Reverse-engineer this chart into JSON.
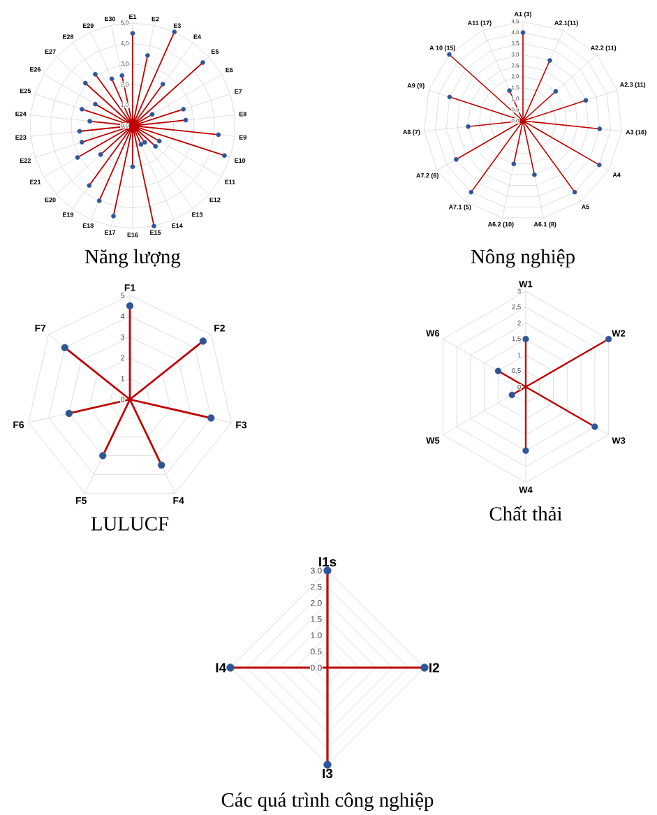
{
  "chart_data": [
    {
      "type": "radar",
      "title": "Năng lượng",
      "categories": [
        "E1",
        "E2",
        "E3",
        "E4",
        "E5",
        "E6",
        "E7",
        "E8",
        "E9",
        "E10",
        "E11",
        "E12",
        "E13",
        "E14",
        "E15",
        "E16",
        "E17",
        "E18",
        "E19",
        "E20",
        "E21",
        "E22",
        "E23",
        "E24",
        "E25",
        "E26",
        "E27",
        "E28",
        "E29",
        "E30"
      ],
      "series": [
        {
          "color": "#c00000",
          "values": [
            4.5,
            3.5,
            5.0,
            2.5,
            4.6,
            1.1,
            2.6,
            2.6,
            4.2,
            4.7,
            1.5,
            1.5,
            1.0,
            1.0,
            5.0,
            2.0,
            4.5,
            4.0,
            3.6,
            2.1,
            3.1,
            2.6,
            2.6,
            2.1,
            2.6,
            2.1,
            3.1,
            3.1,
            2.5,
            2.5
          ]
        }
      ],
      "ylim": [
        0,
        5
      ],
      "yticks": [
        {
          "value": 0,
          "label": "0,0"
        },
        {
          "value": 1,
          "label": "1,0"
        },
        {
          "value": 2,
          "label": "2,0"
        },
        {
          "value": 3,
          "label": "3,0"
        },
        {
          "value": 4,
          "label": "4,0"
        },
        {
          "value": 5,
          "label": "5,0"
        }
      ],
      "grid": true,
      "marker": "circle",
      "line_style": "solid"
    },
    {
      "type": "radar",
      "title": "Nông nghiệp",
      "categories": [
        "A1 (3)",
        "A2.1(11)",
        "A2.2 (11)",
        "A2.3 (11)",
        "A3 (16)",
        "A4",
        "A5",
        "A6.1 (8)",
        "A6.2 (10)",
        "A7.1 (5)",
        "A7.2 (6)",
        "A8 (7)",
        "A9 (9)",
        "A 10 (15)",
        "A11 (17)"
      ],
      "series": [
        {
          "color": "#c00000",
          "values": [
            4.0,
            3.0,
            2.0,
            3.0,
            3.5,
            4.0,
            4.0,
            2.5,
            2.0,
            4.0,
            3.5,
            2.5,
            3.5,
            4.5,
            1.5
          ]
        }
      ],
      "ylim": [
        0,
        4.5
      ],
      "yticks": [
        {
          "value": 0,
          "label": "0,0"
        },
        {
          "value": 0.5,
          "label": "0,5"
        },
        {
          "value": 1,
          "label": "1,0"
        },
        {
          "value": 1.5,
          "label": "1,5"
        },
        {
          "value": 2,
          "label": "2,0"
        },
        {
          "value": 2.5,
          "label": "2,5"
        },
        {
          "value": 3,
          "label": "3,0"
        },
        {
          "value": 3.5,
          "label": "3,5"
        },
        {
          "value": 4,
          "label": "4,0"
        },
        {
          "value": 4.5,
          "label": "4,5"
        }
      ],
      "grid": true,
      "marker": "circle",
      "line_style": "solid"
    },
    {
      "type": "radar",
      "title": "LULUCF",
      "categories": [
        "F1",
        "F2",
        "F3",
        "F4",
        "F5",
        "F6",
        "F7"
      ],
      "series": [
        {
          "color": "#c00000",
          "values": [
            4.5,
            4.5,
            4.0,
            3.5,
            3.0,
            3.0,
            4.0
          ]
        }
      ],
      "ylim": [
        0,
        5
      ],
      "yticks": [
        0,
        1,
        2,
        3,
        4,
        5
      ],
      "grid": true,
      "marker": "circle",
      "line_style": "solid"
    },
    {
      "type": "radar",
      "title": "Chất thải",
      "categories": [
        "W1",
        "W2",
        "W3",
        "W4",
        "W5",
        "W6"
      ],
      "series": [
        {
          "color": "#c00000",
          "values": [
            1.5,
            3.0,
            2.5,
            2.0,
            0.5,
            1.0
          ]
        }
      ],
      "ylim": [
        0,
        3
      ],
      "yticks": [
        0,
        {
          "value": 0.5,
          "label": "0,5"
        },
        1,
        {
          "value": 1.5,
          "label": "1,5"
        },
        2,
        {
          "value": 2.5,
          "label": "2,5"
        },
        3
      ],
      "grid": true,
      "marker": "circle",
      "line_style": "solid"
    },
    {
      "type": "radar",
      "title": "Các quá trình công nghiệp",
      "categories": [
        "I1s",
        "I2",
        "I3",
        "I4"
      ],
      "series": [
        {
          "color": "#c00000",
          "values": [
            3.0,
            3.0,
            3.0,
            3.0
          ]
        }
      ],
      "ylim": [
        0,
        3
      ],
      "yticks": [
        {
          "value": 0,
          "label": "0.0"
        },
        {
          "value": 0.5,
          "label": "0.5"
        },
        {
          "value": 1,
          "label": "1.0"
        },
        {
          "value": 1.5,
          "label": "1.5"
        },
        {
          "value": 2,
          "label": "2.0"
        },
        {
          "value": 2.5,
          "label": "2.5"
        },
        {
          "value": 3,
          "label": "3.0"
        }
      ],
      "grid": true,
      "marker": "circle",
      "line_style": "solid"
    }
  ]
}
